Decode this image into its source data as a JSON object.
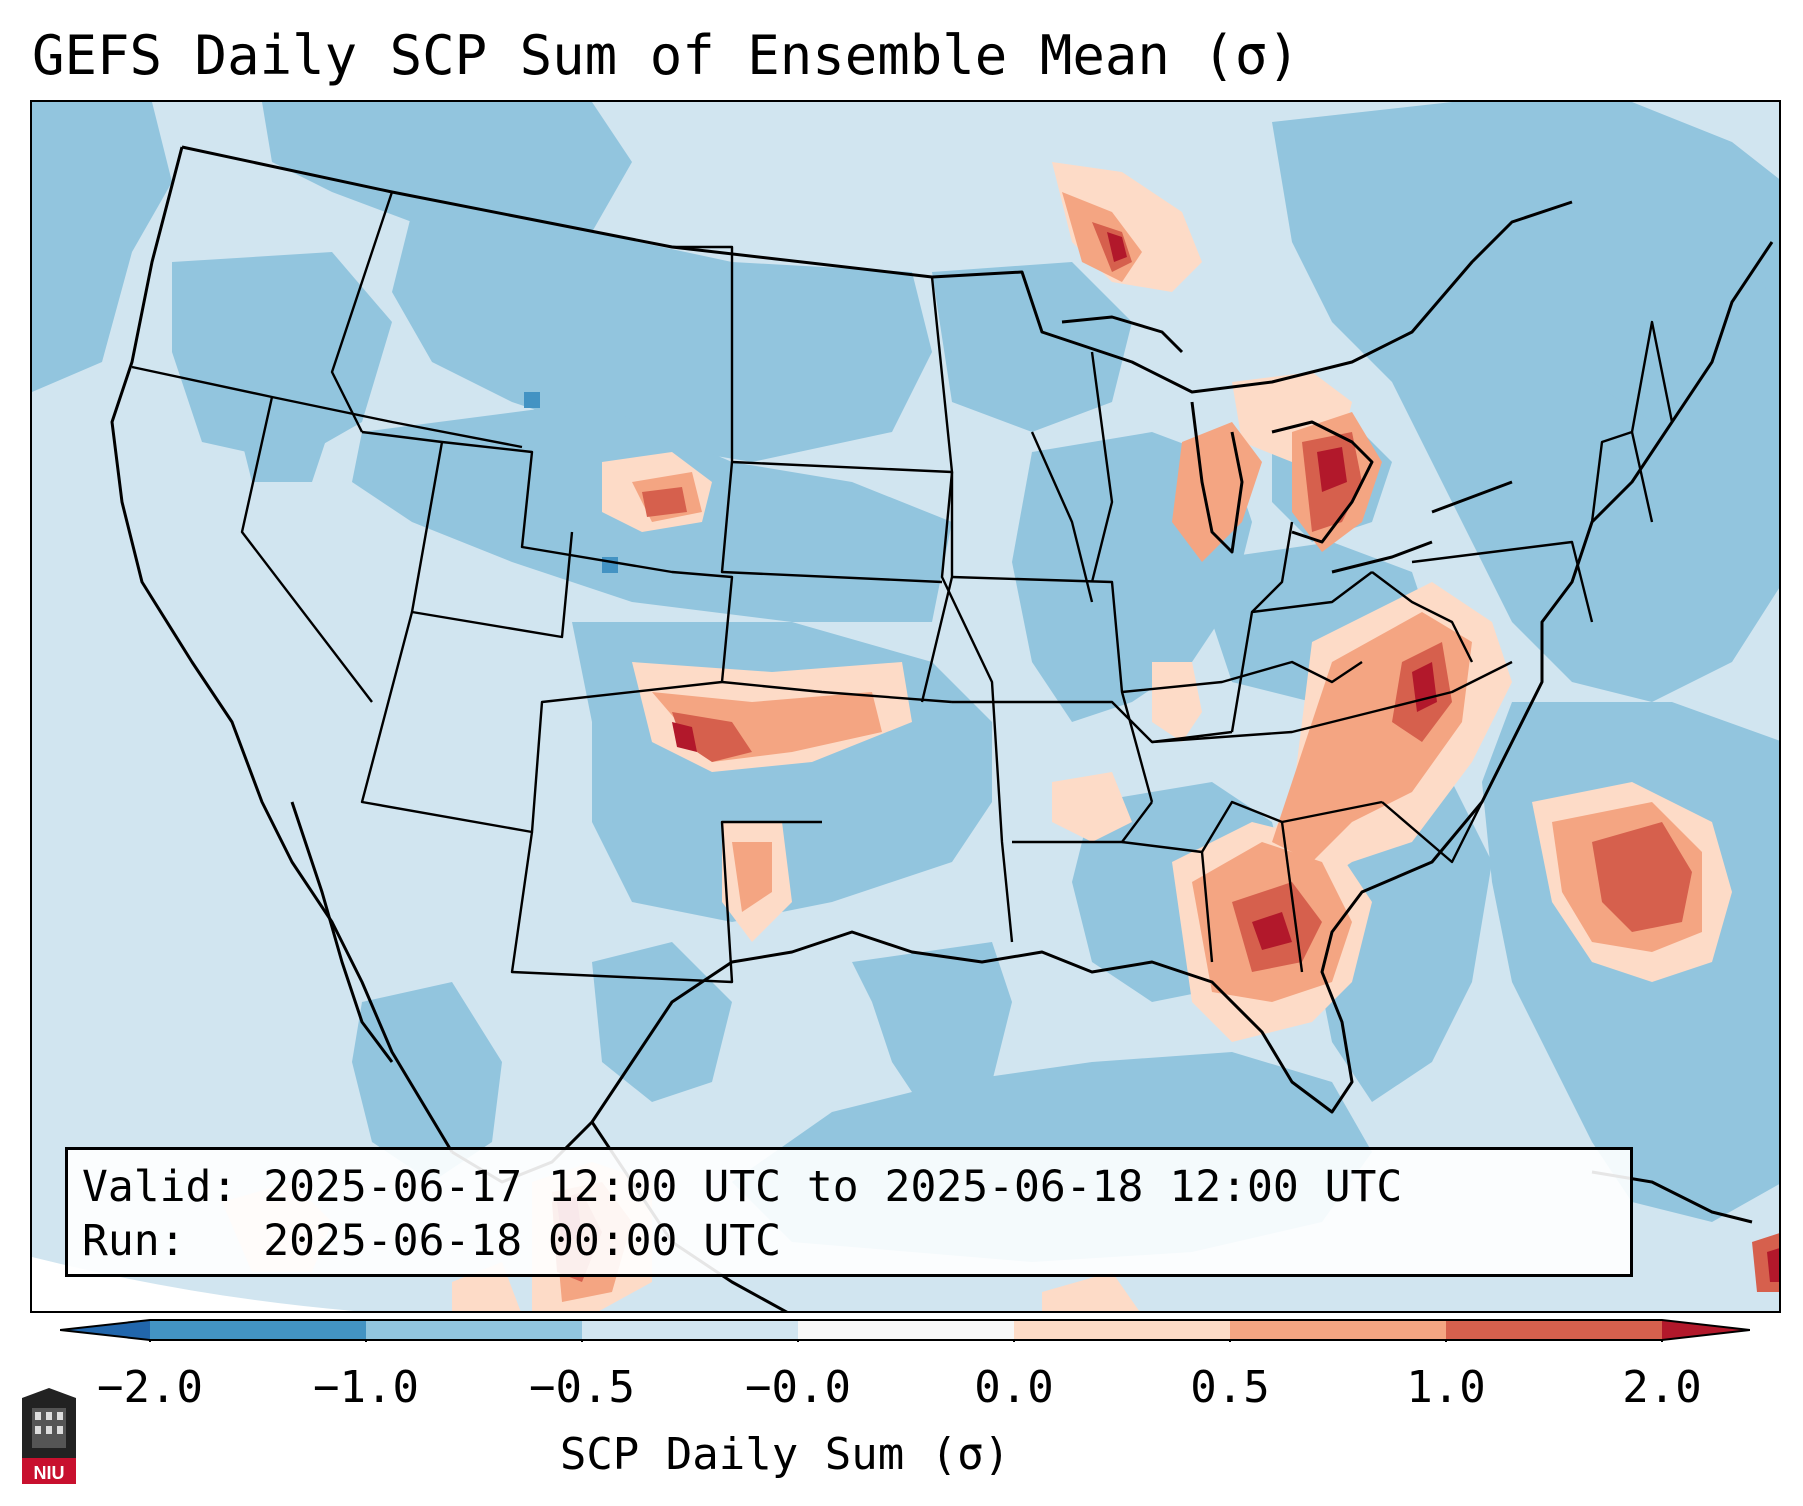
{
  "title": "GEFS Daily SCP Sum of Ensemble Mean (σ)",
  "info_box": {
    "valid_label": "Valid:",
    "valid_value": "2025-06-17 12:00 UTC to 2025-06-18 12:00 UTC",
    "run_label": "Run:",
    "run_value": "2025-06-18 00:00 UTC"
  },
  "colorbar": {
    "label": "SCP Daily Sum (σ)",
    "ticks": [
      "−2.0",
      "−1.0",
      "−0.5",
      "−0.0",
      "0.0",
      "0.5",
      "1.0",
      "2.0"
    ],
    "extend": "both",
    "colors": {
      "below": "#2166ac",
      "bin_neg2_neg1": "#4393c3",
      "bin_neg1_neg05": "#92c5de",
      "bin_neg05_0": "#d1e5f0",
      "bin_0_0": "#f7f7f7",
      "bin_0_05": "#fddbc7",
      "bin_05_1": "#f4a582",
      "bin_1_2": "#d6604d",
      "above": "#b2182b"
    }
  },
  "logo": {
    "text": "NIU",
    "color": "#c8102e"
  }
}
